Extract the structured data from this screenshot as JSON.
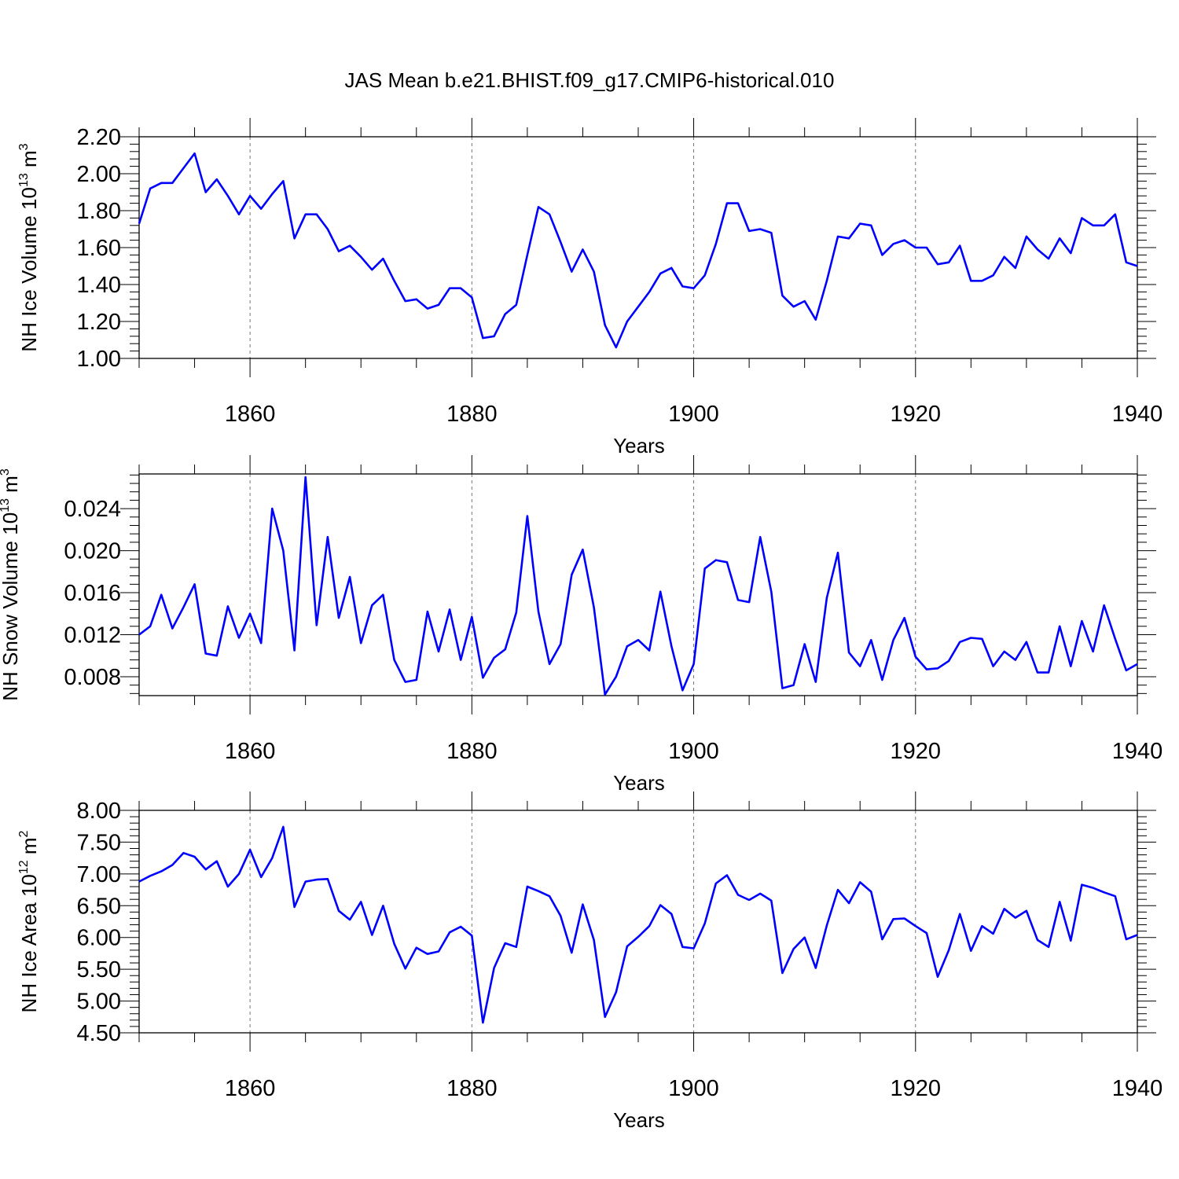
{
  "figure_title": "JAS Mean b.e21.BHIST.f09_g17.CMIP6-historical.010",
  "colors": {
    "line": "#0000ff",
    "axes": "#000000",
    "grid": "#777777"
  },
  "chart_data": [
    {
      "type": "line",
      "xlabel": "Years",
      "ylabel_main": "NH Ice Volume 10",
      "ylabel_exp": "13",
      "ylabel_unit": " m",
      "ylabel_unit_exp": "3",
      "xlim": [
        1850,
        1940
      ],
      "ylim": [
        1.0,
        2.2
      ],
      "yticks": [
        1.0,
        1.2,
        1.4,
        1.6,
        1.8,
        2.0,
        2.2
      ],
      "ytick_labels": [
        "1.00",
        "1.20",
        "1.40",
        "1.60",
        "1.80",
        "2.00",
        "2.20"
      ],
      "xticks": [
        1860,
        1880,
        1900,
        1920,
        1940
      ],
      "xtick_labels": [
        "1860",
        "1880",
        "1900",
        "1920",
        "1940"
      ],
      "grid": "vertical dashed at major x ticks",
      "x_start": 1850,
      "values": [
        1.73,
        1.92,
        1.95,
        1.95,
        2.03,
        2.11,
        1.9,
        1.97,
        1.88,
        1.78,
        1.88,
        1.81,
        1.89,
        1.96,
        1.65,
        1.78,
        1.78,
        1.7,
        1.58,
        1.61,
        1.55,
        1.48,
        1.54,
        1.42,
        1.31,
        1.32,
        1.27,
        1.29,
        1.38,
        1.38,
        1.33,
        1.11,
        1.12,
        1.24,
        1.29,
        1.56,
        1.82,
        1.78,
        1.63,
        1.47,
        1.59,
        1.47,
        1.18,
        1.06,
        1.2,
        1.28,
        1.36,
        1.46,
        1.49,
        1.39,
        1.38,
        1.45,
        1.62,
        1.84,
        1.84,
        1.69,
        1.7,
        1.68,
        1.34,
        1.28,
        1.31,
        1.21,
        1.42,
        1.66,
        1.65,
        1.73,
        1.72,
        1.56,
        1.62,
        1.64,
        1.6,
        1.6,
        1.51,
        1.52,
        1.61,
        1.42,
        1.42,
        1.45,
        1.55,
        1.49,
        1.66,
        1.59,
        1.54,
        1.65,
        1.57,
        1.76,
        1.72,
        1.72,
        1.78,
        1.52,
        1.5
      ]
    },
    {
      "type": "line",
      "xlabel": "Years",
      "ylabel_main": "NH Snow Volume 10",
      "ylabel_exp": "13",
      "ylabel_unit": " m",
      "ylabel_unit_exp": "3",
      "xlim": [
        1850,
        1940
      ],
      "ylim": [
        0.0062,
        0.0273
      ],
      "yticks": [
        0.008,
        0.012,
        0.016,
        0.02,
        0.024
      ],
      "ytick_labels": [
        "0.008",
        "0.012",
        "0.016",
        "0.020",
        "0.024"
      ],
      "xticks": [
        1860,
        1880,
        1900,
        1920,
        1940
      ],
      "xtick_labels": [
        "1860",
        "1880",
        "1900",
        "1920",
        "1940"
      ],
      "grid": "vertical dashed at major x ticks",
      "x_start": 1850,
      "values": [
        0.012,
        0.0128,
        0.0158,
        0.0126,
        0.0146,
        0.0168,
        0.0102,
        0.01,
        0.0147,
        0.0117,
        0.014,
        0.0112,
        0.024,
        0.02,
        0.0105,
        0.027,
        0.0129,
        0.0213,
        0.0136,
        0.0175,
        0.0112,
        0.0148,
        0.0158,
        0.0096,
        0.0075,
        0.0077,
        0.0142,
        0.0104,
        0.0144,
        0.0096,
        0.0137,
        0.0079,
        0.0098,
        0.0106,
        0.0141,
        0.0233,
        0.0142,
        0.0092,
        0.0111,
        0.0177,
        0.0201,
        0.0146,
        0.0063,
        0.008,
        0.0109,
        0.0115,
        0.0105,
        0.0161,
        0.0109,
        0.0067,
        0.0092,
        0.0183,
        0.0191,
        0.0189,
        0.0153,
        0.0151,
        0.0213,
        0.0161,
        0.0069,
        0.0072,
        0.0111,
        0.0075,
        0.0155,
        0.0198,
        0.0103,
        0.009,
        0.0115,
        0.0077,
        0.0115,
        0.0136,
        0.0099,
        0.0087,
        0.0088,
        0.0095,
        0.0113,
        0.0117,
        0.0116,
        0.009,
        0.0104,
        0.0096,
        0.0113,
        0.0084,
        0.0084,
        0.0128,
        0.009,
        0.0133,
        0.0104,
        0.0148,
        0.0116,
        0.0086,
        0.0092
      ]
    },
    {
      "type": "line",
      "xlabel": "Years",
      "ylabel_main": "NH Ice Area 10",
      "ylabel_exp": "12",
      "ylabel_unit": " m",
      "ylabel_unit_exp": "2",
      "xlim": [
        1850,
        1940
      ],
      "ylim": [
        4.5,
        8.0
      ],
      "yticks": [
        4.5,
        5.0,
        5.5,
        6.0,
        6.5,
        7.0,
        7.5,
        8.0
      ],
      "ytick_labels": [
        "4.50",
        "5.00",
        "5.50",
        "6.00",
        "6.50",
        "7.00",
        "7.50",
        "8.00"
      ],
      "xticks": [
        1860,
        1880,
        1900,
        1920,
        1940
      ],
      "xtick_labels": [
        "1860",
        "1880",
        "1900",
        "1920",
        "1940"
      ],
      "grid": "vertical dashed at major x ticks",
      "x_start": 1850,
      "values": [
        6.88,
        6.97,
        7.04,
        7.14,
        7.33,
        7.27,
        7.07,
        7.2,
        6.8,
        7.0,
        7.38,
        6.95,
        7.25,
        7.74,
        6.48,
        6.88,
        6.91,
        6.92,
        6.42,
        6.28,
        6.56,
        6.04,
        6.5,
        5.9,
        5.51,
        5.84,
        5.74,
        5.78,
        6.08,
        6.17,
        6.03,
        4.66,
        5.52,
        5.91,
        5.85,
        6.8,
        6.73,
        6.65,
        6.34,
        5.76,
        6.52,
        5.96,
        4.75,
        5.14,
        5.86,
        6.01,
        6.18,
        6.51,
        6.37,
        5.85,
        5.83,
        6.22,
        6.85,
        6.98,
        6.67,
        6.59,
        6.69,
        6.58,
        5.44,
        5.82,
        6.0,
        5.52,
        6.19,
        6.75,
        6.54,
        6.87,
        6.72,
        5.97,
        6.29,
        6.3,
        6.18,
        6.07,
        5.38,
        5.8,
        6.37,
        5.79,
        6.18,
        6.06,
        6.45,
        6.31,
        6.42,
        5.96,
        5.85,
        6.56,
        5.95,
        6.83,
        6.78,
        6.71,
        6.65,
        5.97,
        6.04
      ]
    }
  ]
}
